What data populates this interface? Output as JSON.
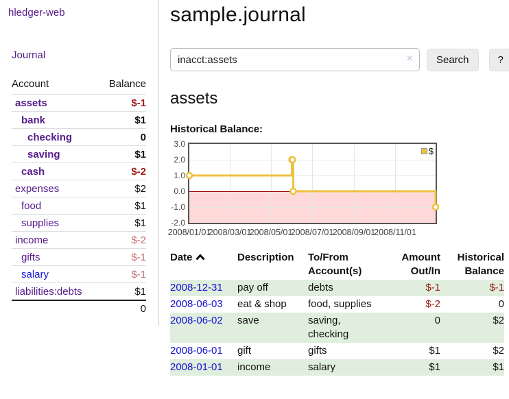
{
  "app": {
    "title": "hledger-web"
  },
  "sidebar": {
    "journal_label": "Journal",
    "accounts": {
      "account_header": "Account",
      "balance_header": "Balance",
      "rows": [
        {
          "label": "assets",
          "balance": "$-1",
          "depth": 0,
          "emphasis": true,
          "balance_tone": "negative-strong",
          "link_tone": "visited"
        },
        {
          "label": "bank",
          "balance": "$1",
          "depth": 1,
          "emphasis": true,
          "balance_tone": "normal",
          "link_tone": "visited"
        },
        {
          "label": "checking",
          "balance": "0",
          "depth": 2,
          "emphasis": true,
          "balance_tone": "normal",
          "link_tone": "visited"
        },
        {
          "label": "saving",
          "balance": "$1",
          "depth": 2,
          "emphasis": true,
          "balance_tone": "normal",
          "link_tone": "visited"
        },
        {
          "label": "cash",
          "balance": "$-2",
          "depth": 1,
          "emphasis": true,
          "balance_tone": "negative-strong",
          "link_tone": "visited"
        },
        {
          "label": "expenses",
          "balance": "$2",
          "depth": 0,
          "emphasis": false,
          "balance_tone": "normal",
          "link_tone": "visited"
        },
        {
          "label": "food",
          "balance": "$1",
          "depth": 1,
          "emphasis": false,
          "balance_tone": "normal",
          "link_tone": "visited"
        },
        {
          "label": "supplies",
          "balance": "$1",
          "depth": 1,
          "emphasis": false,
          "balance_tone": "normal",
          "link_tone": "visited"
        },
        {
          "label": "income",
          "balance": "$-2",
          "depth": 0,
          "emphasis": false,
          "balance_tone": "negative-soft",
          "link_tone": "visited"
        },
        {
          "label": "gifts",
          "balance": "$-1",
          "depth": 1,
          "emphasis": false,
          "balance_tone": "negative-soft",
          "link_tone": "visited"
        },
        {
          "label": "salary",
          "balance": "$-1",
          "depth": 1,
          "emphasis": false,
          "balance_tone": "negative-soft",
          "link_tone": "unvisited"
        },
        {
          "label": "liabilities:debts",
          "balance": "$1",
          "depth": 0,
          "emphasis": false,
          "balance_tone": "normal",
          "link_tone": "visited"
        }
      ],
      "total": "0"
    }
  },
  "main": {
    "title": "sample.journal",
    "search": {
      "value": "inacct:assets",
      "clear_icon": "×",
      "button_label": "Search",
      "help_label": "?"
    },
    "account_heading": "assets",
    "chart_label": "Historical Balance:",
    "register": {
      "headers": {
        "date": "Date",
        "description": "Description",
        "accounts": "To/From Account(s)",
        "amount": "Amount Out/In",
        "balance": "Historical Balance"
      },
      "rows": [
        {
          "date": "2008-12-31",
          "description": "pay off",
          "accounts": "debts",
          "amount": "$-1",
          "amount_tone": "negative",
          "balance": "$-1",
          "balance_tone": "negative"
        },
        {
          "date": "2008-06-03",
          "description": "eat & shop",
          "accounts": "food, supplies",
          "amount": "$-2",
          "amount_tone": "negative",
          "balance": "0",
          "balance_tone": "normal"
        },
        {
          "date": "2008-06-02",
          "description": "save",
          "accounts": "saving, checking",
          "amount": "0",
          "amount_tone": "normal",
          "balance": "$2",
          "balance_tone": "normal"
        },
        {
          "date": "2008-06-01",
          "description": "gift",
          "accounts": "gifts",
          "amount": "$1",
          "amount_tone": "normal",
          "balance": "$2",
          "balance_tone": "normal"
        },
        {
          "date": "2008-01-01",
          "description": "income",
          "accounts": "salary",
          "amount": "$1",
          "amount_tone": "normal",
          "balance": "$1",
          "balance_tone": "normal"
        }
      ]
    }
  },
  "chart_data": {
    "type": "line",
    "title": "Historical Balance",
    "style": "step",
    "series": [
      {
        "name": "$",
        "color": "#edc240",
        "points": [
          [
            "2008-01-01",
            1
          ],
          [
            "2008-06-01",
            2
          ],
          [
            "2008-06-02",
            2
          ],
          [
            "2008-06-03",
            0
          ],
          [
            "2008-12-31",
            -1
          ]
        ]
      }
    ],
    "ylim": [
      -2,
      3
    ],
    "y_ticks": [
      "3.0",
      "2.0",
      "1.0",
      "0.0",
      "-1.0",
      "-2.0"
    ],
    "xlim": [
      "2008-01-01",
      "2008-12-31"
    ],
    "x_ticks": [
      "2008/01/01",
      "2008/03/01",
      "2008/05/01",
      "2008/07/01",
      "2008/09/01",
      "2008/11/01"
    ],
    "legend": {
      "position": "top-right",
      "label": "$"
    },
    "grid": true,
    "negative_region_color": "#ffd9d9",
    "zero_line_color": "#a00000",
    "border_color": "#545454"
  }
}
